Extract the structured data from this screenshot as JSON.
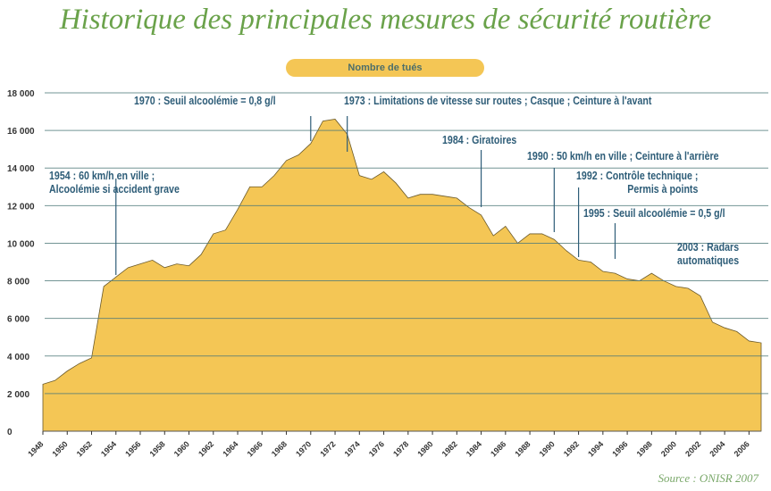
{
  "chart_data": {
    "type": "area",
    "title": "Historique des principales mesures de sécurité routière",
    "legend": [
      "Nombre de tués"
    ],
    "legend_position": "top-center",
    "xlabel": "",
    "ylabel": "",
    "xlim": [
      1948,
      2007
    ],
    "ylim": [
      0,
      18000
    ],
    "grid": "horizontal",
    "colors": {
      "fill": "#f4c655",
      "grid": "#4f7a7a",
      "text": "#2e5d78",
      "title": "#6aa24a"
    },
    "x_tick_labels": [
      "1948",
      "1950",
      "1952",
      "1954",
      "1956",
      "1958",
      "1960",
      "1962",
      "1964",
      "1966",
      "1968",
      "1970",
      "1972",
      "1974",
      "1976",
      "1978",
      "1980",
      "1982",
      "1984",
      "1986",
      "1988",
      "1990",
      "1992",
      "1994",
      "1996",
      "1998",
      "2000",
      "2002",
      "2004",
      "2006"
    ],
    "y_tick_labels": [
      "0",
      "2 000",
      "4 000",
      "6 000",
      "8 000",
      "10 000",
      "12 000",
      "14 000",
      "16 000",
      "18 000"
    ],
    "x": [
      1948,
      1949,
      1950,
      1951,
      1952,
      1953,
      1954,
      1955,
      1956,
      1957,
      1958,
      1959,
      1960,
      1961,
      1962,
      1963,
      1964,
      1965,
      1966,
      1967,
      1968,
      1969,
      1970,
      1971,
      1972,
      1973,
      1974,
      1975,
      1976,
      1977,
      1978,
      1979,
      1980,
      1981,
      1982,
      1983,
      1984,
      1985,
      1986,
      1987,
      1988,
      1989,
      1990,
      1991,
      1992,
      1993,
      1994,
      1995,
      1996,
      1997,
      1998,
      1999,
      2000,
      2001,
      2002,
      2003,
      2004,
      2005,
      2006,
      2007
    ],
    "series": [
      {
        "name": "Nombre de tués",
        "values": [
          2500,
          2700,
          3200,
          3600,
          3900,
          7700,
          8200,
          8700,
          8900,
          9100,
          8700,
          8900,
          8800,
          9400,
          10500,
          10700,
          11800,
          13000,
          13000,
          13600,
          14400,
          14700,
          15300,
          16500,
          16600,
          15800,
          13600,
          13400,
          13800,
          13200,
          12400,
          12600,
          12600,
          12500,
          12400,
          11900,
          11500,
          10400,
          10900,
          10000,
          10500,
          10500,
          10200,
          9600,
          9100,
          9000,
          8500,
          8400,
          8100,
          8000,
          8400,
          8000,
          7700,
          7600,
          7200,
          5800,
          5500,
          5300,
          4800,
          4700
        ]
      }
    ],
    "annotations": [
      {
        "year": 1954,
        "lines": [
          "1954 : 60 km/h en ville ;",
          "Alcoolémie si accident grave"
        ]
      },
      {
        "year": 1970,
        "lines": [
          "1970 : Seuil alcoolémie = 0,8 g/l"
        ]
      },
      {
        "year": 1973,
        "lines": [
          "1973 : Limitations de vitesse sur routes ; Casque ; Ceinture à l'avant"
        ]
      },
      {
        "year": 1984,
        "lines": [
          "1984 : Giratoires"
        ]
      },
      {
        "year": 1990,
        "lines": [
          "1990 : 50 km/h en ville ; Ceinture à l'arrière"
        ]
      },
      {
        "year": 1992,
        "lines": [
          "1992 : Contrôle technique ;",
          "Permis à points"
        ]
      },
      {
        "year": 1995,
        "lines": [
          "1995 : Seuil alcoolémie = 0,5 g/l"
        ]
      },
      {
        "year": 2003,
        "lines": [
          "2003 : Radars",
          "automatiques"
        ]
      }
    ],
    "source": "Source : ONISR 2007"
  }
}
